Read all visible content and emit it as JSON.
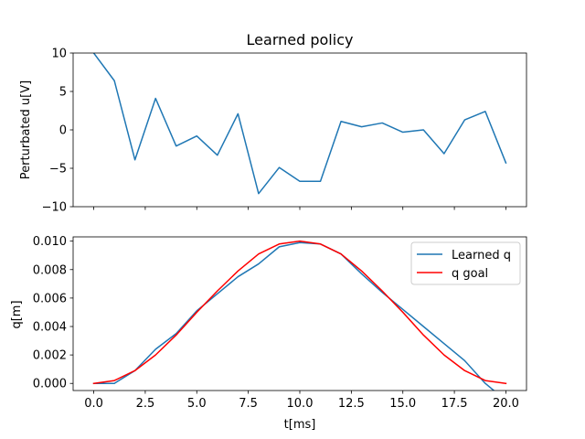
{
  "figure": {
    "background": "#ffffff"
  },
  "chart_data": [
    {
      "type": "line",
      "title": "Learned policy",
      "xlabel": "",
      "ylabel": "Perturbated u[V]",
      "xlim": [
        -1,
        21
      ],
      "ylim": [
        -10,
        10
      ],
      "xticks": [
        0,
        2.5,
        5,
        7.5,
        10,
        12.5,
        15,
        17.5,
        20
      ],
      "xtick_labels_visible": false,
      "yticks": [
        -10,
        -5,
        0,
        5,
        10
      ],
      "ytick_labels": [
        "−10",
        "−5",
        "0",
        "5",
        "10"
      ],
      "grid": false,
      "legend": null,
      "series": [
        {
          "color": "#1f77b4",
          "x": [
            0,
            1,
            2,
            3,
            4,
            5,
            6,
            7,
            8,
            9,
            10,
            11,
            12,
            13,
            14,
            15,
            16,
            17,
            18,
            19,
            20
          ],
          "y": [
            10,
            6.4,
            -3.9,
            4.1,
            -2.1,
            -0.8,
            -3.3,
            2.1,
            -8.3,
            -4.9,
            -6.7,
            -6.7,
            1.1,
            0.4,
            0.9,
            -0.3,
            0.0,
            -3.1,
            1.3,
            2.4,
            -4.3
          ]
        }
      ]
    },
    {
      "type": "line",
      "title": "",
      "xlabel": "t[ms]",
      "ylabel": "q[m]",
      "xlim": [
        -1,
        21
      ],
      "ylim": [
        -0.0005,
        0.0103
      ],
      "xticks": [
        0,
        2.5,
        5,
        7.5,
        10,
        12.5,
        15,
        17.5,
        20
      ],
      "xtick_labels": [
        "0.0",
        "2.5",
        "5.0",
        "7.5",
        "10.0",
        "12.5",
        "15.0",
        "17.5",
        "20.0"
      ],
      "yticks": [
        0,
        0.002,
        0.004,
        0.006,
        0.008,
        0.01
      ],
      "ytick_labels": [
        "0.000",
        "0.002",
        "0.004",
        "0.006",
        "0.008",
        "0.010"
      ],
      "grid": false,
      "legend": "top-right",
      "series": [
        {
          "name": "Learned q",
          "color": "#1f77b4",
          "x": [
            0,
            1,
            2,
            3,
            4,
            5,
            6,
            7,
            8,
            9,
            10,
            11,
            12,
            13,
            14,
            15,
            16,
            17,
            18,
            19,
            20
          ],
          "y": [
            0.0,
            0.0,
            0.0009,
            0.0024,
            0.0035,
            0.0051,
            0.0063,
            0.0075,
            0.0084,
            0.0096,
            0.0099,
            0.0098,
            0.0091,
            0.0077,
            0.0064,
            0.0052,
            0.004,
            0.0028,
            0.0016,
            0.0,
            -0.0012
          ]
        },
        {
          "name": "q goal",
          "color": "#ff0000",
          "x": [
            0,
            1,
            2,
            3,
            4,
            5,
            6,
            7,
            8,
            9,
            10,
            11,
            12,
            13,
            14,
            15,
            16,
            17,
            18,
            19,
            20
          ],
          "y": [
            0.0,
            0.0002,
            0.0009,
            0.002,
            0.0034,
            0.005,
            0.0065,
            0.0079,
            0.0091,
            0.0098,
            0.01,
            0.0098,
            0.0091,
            0.0079,
            0.0065,
            0.005,
            0.0034,
            0.002,
            0.0009,
            0.0002,
            0.0
          ]
        }
      ]
    }
  ]
}
